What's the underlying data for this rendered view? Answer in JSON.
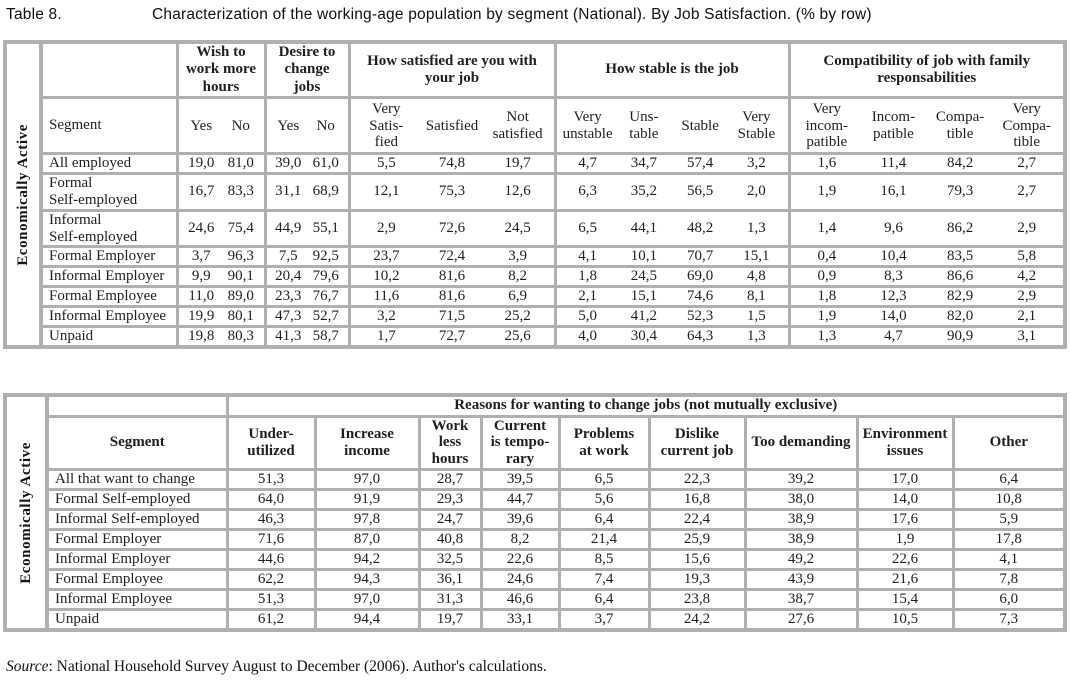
{
  "title": {
    "label": "Table 8.",
    "text": "Characterization of the working-age population by segment (National). By Job Satisfaction. (% by row)"
  },
  "colors": {
    "grid": "#b0b0b0",
    "background": "#ffffff",
    "text": "#1f1f1f"
  },
  "table1": {
    "side_label": "Economically Active",
    "segment_header": "Segment",
    "groups": [
      {
        "label": "Wish to\nwork more\nhours",
        "cols": [
          "Yes",
          "No"
        ]
      },
      {
        "label": "Desire to\nchange\njobs",
        "cols": [
          "Yes",
          "No"
        ]
      },
      {
        "label": "How satisfied are you with\nyour job",
        "cols": [
          "Very\nSatis-\nfied",
          "Satisfied",
          "Not\nsatisfied"
        ]
      },
      {
        "label": "How stable is the job",
        "cols": [
          "Very\nunstable",
          "Uns-\ntable",
          "Stable",
          "Very\nStable"
        ]
      },
      {
        "label": "Compatibility of job with family\nresponsabilities",
        "cols": [
          "Very\nincom-\npatible",
          "Incom-\npatible",
          "Compa-\ntible",
          "Very\nCompa-\ntible"
        ]
      }
    ],
    "rows": [
      {
        "segment": "All employed",
        "values": [
          [
            "19,0",
            "81,0"
          ],
          [
            "39,0",
            "61,0"
          ],
          [
            "5,5",
            "74,8",
            "19,7"
          ],
          [
            "4,7",
            "34,7",
            "57,4",
            "3,2"
          ],
          [
            "1,6",
            "11,4",
            "84,2",
            "2,7"
          ]
        ]
      },
      {
        "segment": "Formal\nSelf-employed",
        "values": [
          [
            "16,7",
            "83,3"
          ],
          [
            "31,1",
            "68,9"
          ],
          [
            "12,1",
            "75,3",
            "12,6"
          ],
          [
            "6,3",
            "35,2",
            "56,5",
            "2,0"
          ],
          [
            "1,9",
            "16,1",
            "79,3",
            "2,7"
          ]
        ]
      },
      {
        "segment": "Informal\nSelf-employed",
        "values": [
          [
            "24,6",
            "75,4"
          ],
          [
            "44,9",
            "55,1"
          ],
          [
            "2,9",
            "72,6",
            "24,5"
          ],
          [
            "6,5",
            "44,1",
            "48,2",
            "1,3"
          ],
          [
            "1,4",
            "9,6",
            "86,2",
            "2,9"
          ]
        ]
      },
      {
        "segment": "Formal Employer",
        "values": [
          [
            "3,7",
            "96,3"
          ],
          [
            "7,5",
            "92,5"
          ],
          [
            "23,7",
            "72,4",
            "3,9"
          ],
          [
            "4,1",
            "10,1",
            "70,7",
            "15,1"
          ],
          [
            "0,4",
            "10,4",
            "83,5",
            "5,8"
          ]
        ]
      },
      {
        "segment": "Informal Employer",
        "values": [
          [
            "9,9",
            "90,1"
          ],
          [
            "20,4",
            "79,6"
          ],
          [
            "10,2",
            "81,6",
            "8,2"
          ],
          [
            "1,8",
            "24,5",
            "69,0",
            "4,8"
          ],
          [
            "0,9",
            "8,3",
            "86,6",
            "4,2"
          ]
        ]
      },
      {
        "segment": "Formal  Employee",
        "values": [
          [
            "11,0",
            "89,0"
          ],
          [
            "23,3",
            "76,7"
          ],
          [
            "11,6",
            "81,6",
            "6,9"
          ],
          [
            "2,1",
            "15,1",
            "74,6",
            "8,1"
          ],
          [
            "1,8",
            "12,3",
            "82,9",
            "2,9"
          ]
        ]
      },
      {
        "segment": "Informal Employee",
        "values": [
          [
            "19,9",
            "80,1"
          ],
          [
            "47,3",
            "52,7"
          ],
          [
            "3,2",
            "71,5",
            "25,2"
          ],
          [
            "5,0",
            "41,2",
            "52,3",
            "1,5"
          ],
          [
            "1,9",
            "14,0",
            "82,0",
            "2,1"
          ]
        ]
      },
      {
        "segment": "Unpaid",
        "values": [
          [
            "19,8",
            "80,3"
          ],
          [
            "41,3",
            "58,7"
          ],
          [
            "1,7",
            "72,7",
            "25,6"
          ],
          [
            "4,0",
            "30,4",
            "64,3",
            "1,3"
          ],
          [
            "1,3",
            "4,7",
            "90,9",
            "3,1"
          ]
        ]
      }
    ]
  },
  "table2": {
    "side_label": "Economically Active",
    "segment_header": "Segment",
    "span_header": "Reasons for wanting to change jobs (not mutually exclusive)",
    "columns": [
      "Under-\nutilized",
      "Increase\nincome",
      "Work\nless\nhours",
      "Current\nis tempo-\nrary",
      "Problems\nat work",
      "Dislike\ncurrent job",
      "Too demanding",
      "Environment\nissues",
      "Other"
    ],
    "rows": [
      {
        "segment": "All that want to change",
        "values": [
          "51,3",
          "97,0",
          "28,7",
          "39,5",
          "6,5",
          "22,3",
          "39,2",
          "17,0",
          "6,4"
        ]
      },
      {
        "segment": "Formal Self-employed",
        "values": [
          "64,0",
          "91,9",
          "29,3",
          "44,7",
          "5,6",
          "16,8",
          "38,0",
          "14,0",
          "10,8"
        ]
      },
      {
        "segment": "Informal Self-employed",
        "values": [
          "46,3",
          "97,8",
          "24,7",
          "39,6",
          "6,4",
          "22,4",
          "38,9",
          "17,6",
          "5,9"
        ]
      },
      {
        "segment": "Formal Employer",
        "values": [
          "71,6",
          "87,0",
          "40,8",
          "8,2",
          "21,4",
          "25,9",
          "38,9",
          "1,9",
          "17,8"
        ]
      },
      {
        "segment": "Informal Employer",
        "values": [
          "44,6",
          "94,2",
          "32,5",
          "22,6",
          "8,5",
          "15,6",
          "49,2",
          "22,6",
          "4,1"
        ]
      },
      {
        "segment": "Formal Employee",
        "values": [
          "62,2",
          "94,3",
          "36,1",
          "24,6",
          "7,4",
          "19,3",
          "43,9",
          "21,6",
          "7,8"
        ]
      },
      {
        "segment": "Informal Employee",
        "values": [
          "51,3",
          "97,0",
          "31,3",
          "46,6",
          "6,4",
          "23,8",
          "38,7",
          "15,4",
          "6,0"
        ]
      },
      {
        "segment": "Unpaid",
        "values": [
          "61,2",
          "94,4",
          "19,7",
          "33,1",
          "3,7",
          "24,2",
          "27,6",
          "10,5",
          "7,3"
        ]
      }
    ]
  },
  "source": {
    "label": "Source",
    "text": ": National Household Survey August to December (2006). Author's calculations."
  }
}
